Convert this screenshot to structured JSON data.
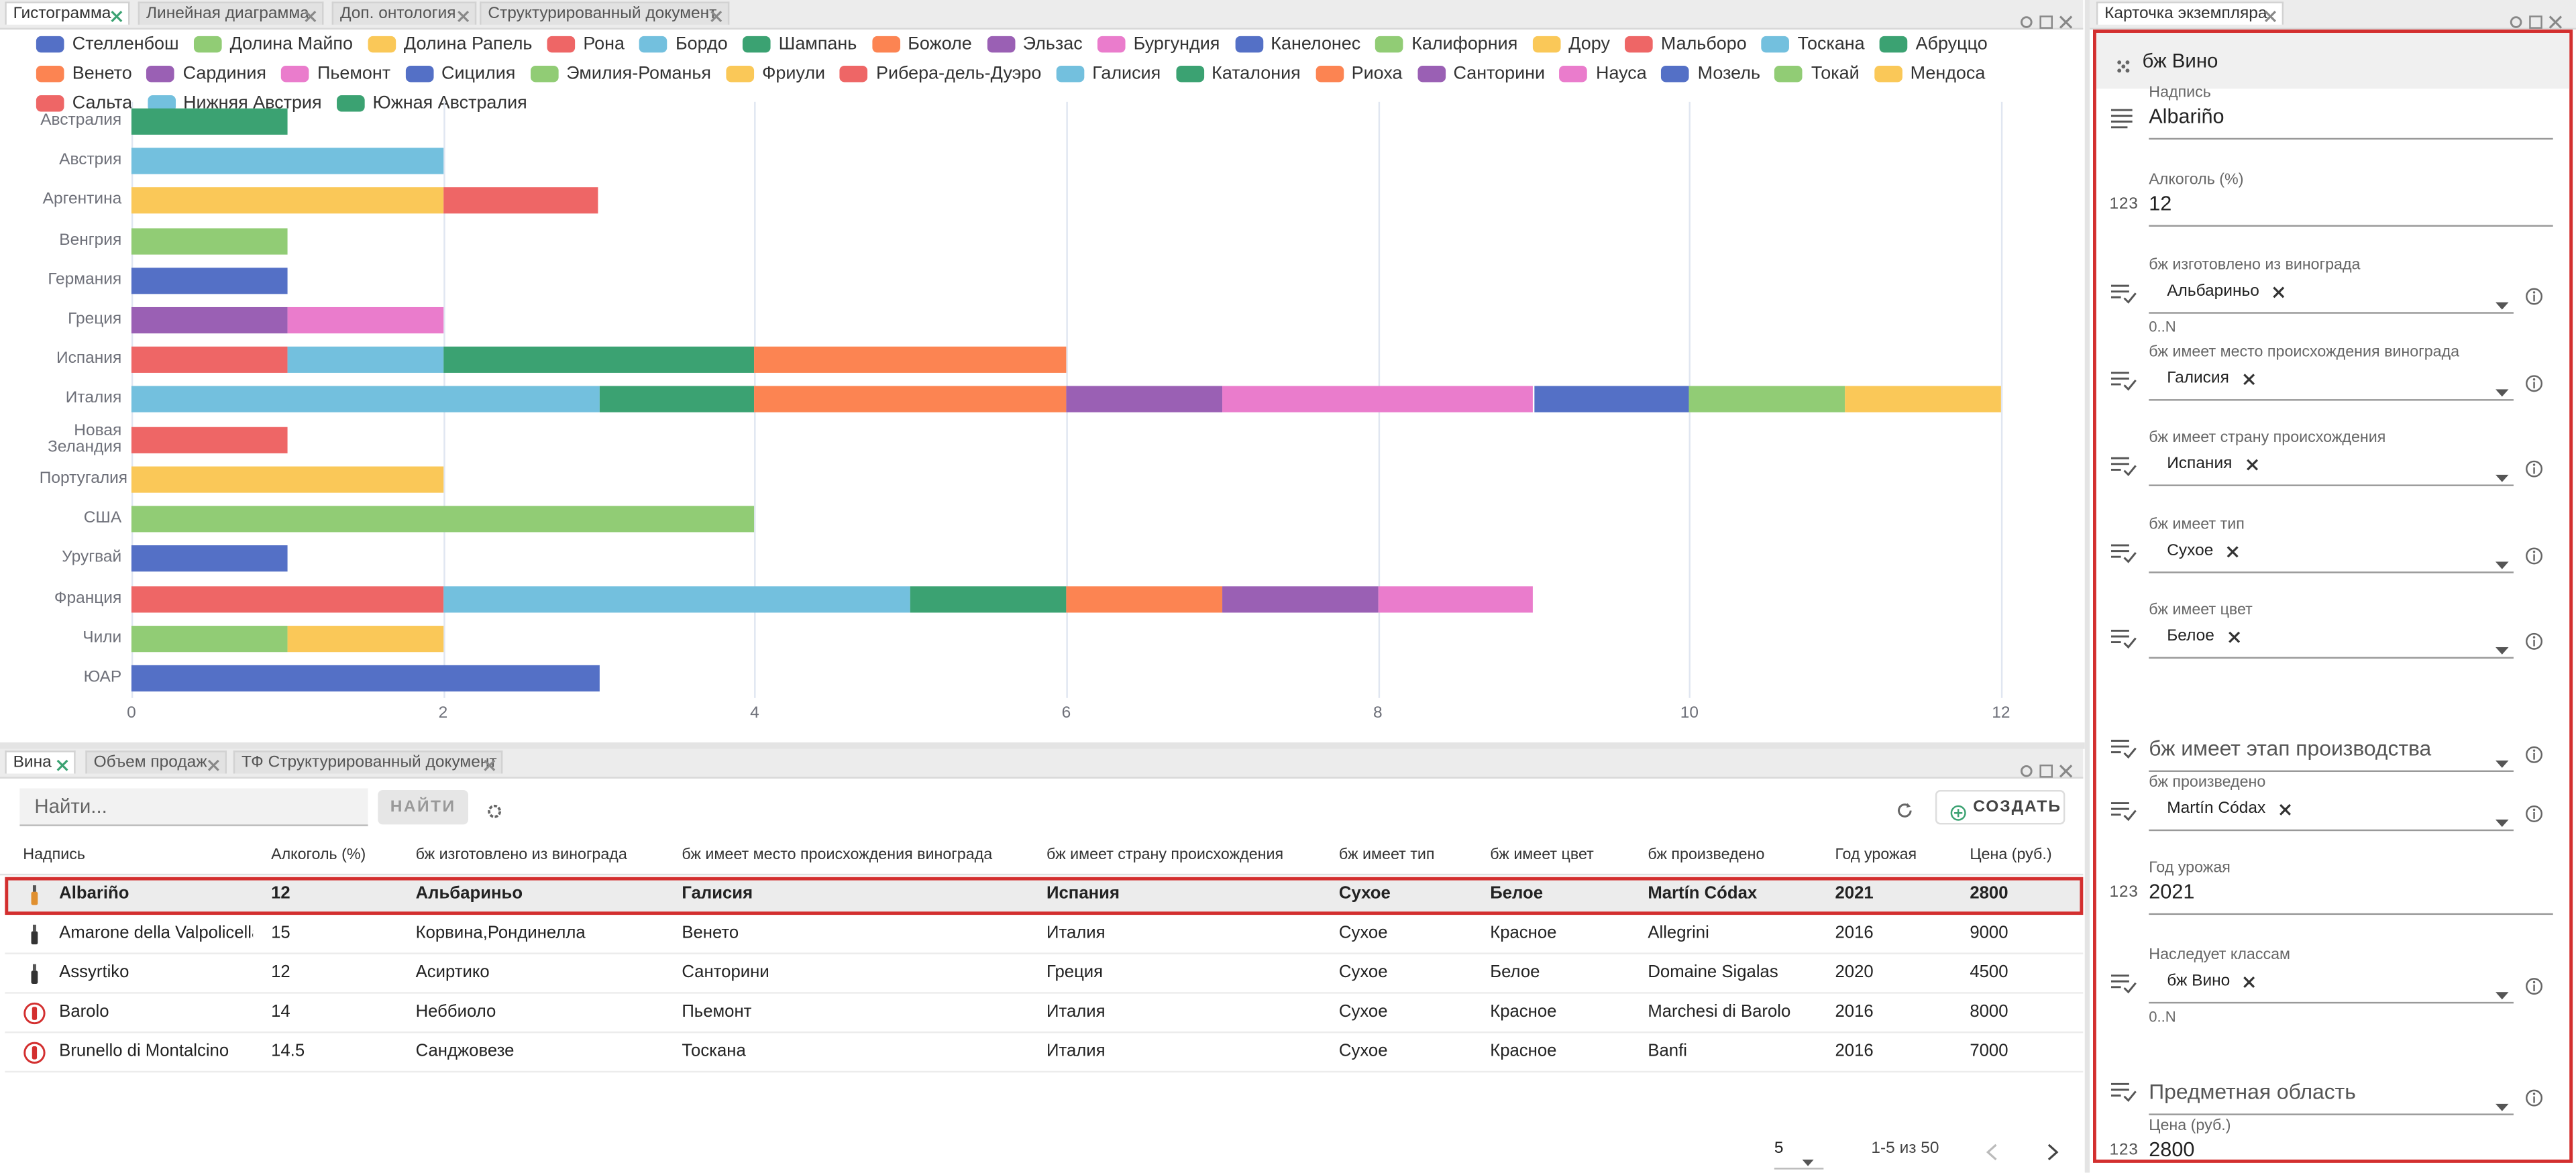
{
  "top_tabs": [
    "Гистограмма",
    "Линейная диаграмма",
    "Доп. онтология",
    "Структурированный документ"
  ],
  "chart_data": {
    "type": "bar",
    "orientation": "horizontal",
    "stacked": true,
    "grid": true,
    "legend": "top",
    "categories": [
      "Австралия",
      "Австрия",
      "Аргентина",
      "Венгрия",
      "Германия",
      "Греция",
      "Испания",
      "Италия",
      "Новая Зеландия",
      "Португалия",
      "США",
      "Уругвай",
      "Франция",
      "Чили",
      "ЮАР"
    ],
    "xlim": [
      0,
      12
    ],
    "xticks": [
      0,
      2,
      4,
      6,
      8,
      10,
      12
    ],
    "series": [
      {
        "name": "Стелленбош",
        "color": "#5470c6",
        "values": [
          null,
          null,
          null,
          null,
          null,
          null,
          null,
          null,
          null,
          null,
          null,
          null,
          null,
          null,
          3
        ]
      },
      {
        "name": "Долина Майпо",
        "color": "#91cc75",
        "values": [
          null,
          null,
          null,
          null,
          null,
          null,
          null,
          null,
          null,
          null,
          null,
          null,
          null,
          1,
          null
        ]
      },
      {
        "name": "Долина Рапель",
        "color": "#fac858",
        "values": [
          null,
          null,
          null,
          null,
          null,
          null,
          null,
          null,
          null,
          null,
          null,
          null,
          null,
          1,
          null
        ]
      },
      {
        "name": "Рона",
        "color": "#ee6666",
        "values": [
          null,
          null,
          null,
          null,
          null,
          null,
          null,
          null,
          null,
          null,
          null,
          null,
          2,
          null,
          null
        ]
      },
      {
        "name": "Бордо",
        "color": "#73c0de",
        "values": [
          null,
          null,
          null,
          null,
          null,
          null,
          null,
          null,
          null,
          null,
          null,
          null,
          3,
          null,
          null
        ]
      },
      {
        "name": "Шампань",
        "color": "#3ba272",
        "values": [
          null,
          null,
          null,
          null,
          null,
          null,
          null,
          null,
          null,
          null,
          null,
          null,
          1,
          null,
          null
        ]
      },
      {
        "name": "Божоле",
        "color": "#fc8452",
        "values": [
          null,
          null,
          null,
          null,
          null,
          null,
          null,
          null,
          null,
          null,
          null,
          null,
          1,
          null,
          null
        ]
      },
      {
        "name": "Эльзас",
        "color": "#9a60b4",
        "values": [
          null,
          null,
          null,
          null,
          null,
          null,
          null,
          null,
          null,
          null,
          null,
          null,
          1,
          null,
          null
        ]
      },
      {
        "name": "Бургундия",
        "color": "#ea7ccc",
        "values": [
          null,
          null,
          null,
          null,
          null,
          null,
          null,
          null,
          null,
          null,
          null,
          null,
          1,
          null,
          null
        ]
      },
      {
        "name": "Канелонес",
        "color": "#5470c6",
        "values": [
          null,
          null,
          null,
          null,
          null,
          null,
          null,
          null,
          null,
          null,
          null,
          1,
          null,
          null,
          null
        ]
      },
      {
        "name": "Калифорния",
        "color": "#91cc75",
        "values": [
          null,
          null,
          null,
          null,
          null,
          null,
          null,
          null,
          null,
          null,
          4,
          null,
          null,
          null,
          null
        ]
      },
      {
        "name": "Дору",
        "color": "#fac858",
        "values": [
          null,
          null,
          null,
          null,
          null,
          null,
          null,
          null,
          null,
          2,
          null,
          null,
          null,
          null,
          null
        ]
      },
      {
        "name": "Мальборо",
        "color": "#ee6666",
        "values": [
          null,
          null,
          null,
          null,
          null,
          null,
          null,
          null,
          1,
          null,
          null,
          null,
          null,
          null,
          null
        ]
      },
      {
        "name": "Тоскана",
        "color": "#73c0de",
        "values": [
          null,
          null,
          null,
          null,
          null,
          null,
          null,
          3,
          null,
          null,
          null,
          null,
          null,
          null,
          null
        ]
      },
      {
        "name": "Абруццо",
        "color": "#3ba272",
        "values": [
          null,
          null,
          null,
          null,
          null,
          null,
          null,
          1,
          null,
          null,
          null,
          null,
          null,
          null,
          null
        ]
      },
      {
        "name": "Венето",
        "color": "#fc8452",
        "values": [
          null,
          null,
          null,
          null,
          null,
          null,
          null,
          2,
          null,
          null,
          null,
          null,
          null,
          null,
          null
        ]
      },
      {
        "name": "Сардиния",
        "color": "#9a60b4",
        "values": [
          null,
          null,
          null,
          null,
          null,
          null,
          null,
          1,
          null,
          null,
          null,
          null,
          null,
          null,
          null
        ]
      },
      {
        "name": "Пьемонт",
        "color": "#ea7ccc",
        "values": [
          null,
          null,
          null,
          null,
          null,
          null,
          null,
          2,
          null,
          null,
          null,
          null,
          null,
          null,
          null
        ]
      },
      {
        "name": "Сицилия",
        "color": "#5470c6",
        "values": [
          null,
          null,
          null,
          null,
          null,
          null,
          null,
          1,
          null,
          null,
          null,
          null,
          null,
          null,
          null
        ]
      },
      {
        "name": "Эмилия-Романья",
        "color": "#91cc75",
        "values": [
          null,
          null,
          null,
          null,
          null,
          null,
          null,
          1,
          null,
          null,
          null,
          null,
          null,
          null,
          null
        ]
      },
      {
        "name": "Фриули",
        "color": "#fac858",
        "values": [
          null,
          null,
          null,
          null,
          null,
          null,
          null,
          1,
          null,
          null,
          null,
          null,
          null,
          null,
          null
        ]
      },
      {
        "name": "Рибера-дель-Дуэро",
        "color": "#ee6666",
        "values": [
          null,
          null,
          null,
          null,
          null,
          null,
          1,
          null,
          null,
          null,
          null,
          null,
          null,
          null,
          null
        ]
      },
      {
        "name": "Галисия",
        "color": "#73c0de",
        "values": [
          null,
          null,
          null,
          null,
          null,
          null,
          1,
          null,
          null,
          null,
          null,
          null,
          null,
          null,
          null
        ]
      },
      {
        "name": "Каталония",
        "color": "#3ba272",
        "values": [
          null,
          null,
          null,
          null,
          null,
          null,
          2,
          null,
          null,
          null,
          null,
          null,
          null,
          null,
          null
        ]
      },
      {
        "name": "Риоха",
        "color": "#fc8452",
        "values": [
          null,
          null,
          null,
          null,
          null,
          null,
          2,
          null,
          null,
          null,
          null,
          null,
          null,
          null,
          null
        ]
      },
      {
        "name": "Санторини",
        "color": "#9a60b4",
        "values": [
          null,
          null,
          null,
          null,
          null,
          1,
          null,
          null,
          null,
          null,
          null,
          null,
          null,
          null,
          null
        ]
      },
      {
        "name": "Науса",
        "color": "#ea7ccc",
        "values": [
          null,
          null,
          null,
          null,
          null,
          1,
          null,
          null,
          null,
          null,
          null,
          null,
          null,
          null,
          null
        ]
      },
      {
        "name": "Мозель",
        "color": "#5470c6",
        "values": [
          null,
          null,
          null,
          null,
          1,
          null,
          null,
          null,
          null,
          null,
          null,
          null,
          null,
          null,
          null
        ]
      },
      {
        "name": "Токай",
        "color": "#91cc75",
        "values": [
          null,
          null,
          null,
          1,
          null,
          null,
          null,
          null,
          null,
          null,
          null,
          null,
          null,
          null,
          null
        ]
      },
      {
        "name": "Мендоса",
        "color": "#fac858",
        "values": [
          null,
          null,
          2,
          null,
          null,
          null,
          null,
          null,
          null,
          null,
          null,
          null,
          null,
          null,
          null
        ]
      },
      {
        "name": "Сальта",
        "color": "#ee6666",
        "values": [
          null,
          null,
          1,
          null,
          null,
          null,
          null,
          null,
          null,
          null,
          null,
          null,
          null,
          null,
          null
        ]
      },
      {
        "name": "Нижняя Австрия",
        "color": "#73c0de",
        "values": [
          null,
          2,
          null,
          null,
          null,
          null,
          null,
          null,
          null,
          null,
          null,
          null,
          null,
          null,
          null
        ]
      },
      {
        "name": "Южная Австралия",
        "color": "#3ba272",
        "values": [
          1,
          null,
          null,
          null,
          null,
          null,
          null,
          null,
          null,
          null,
          null,
          null,
          null,
          null,
          null
        ]
      }
    ]
  },
  "bottom_tabs": [
    "Вина",
    "Объем продаж",
    "ТФ Структурированный документ"
  ],
  "toolbar": {
    "search_placeholder": "Найти...",
    "search_button": "НАЙТИ",
    "create_button": "СОЗДАТЬ"
  },
  "table": {
    "columns": [
      "Надпись",
      "Алкоголь (%)",
      "бж изготовлено из винограда",
      "бж имеет место происхождения винограда",
      "бж имеет страну происхождения",
      "бж имеет тип",
      "бж имеет цвет",
      "бж произведено",
      "Год урожая",
      "Цена (руб.)"
    ],
    "rows": [
      [
        "Albariño",
        "12",
        "Альбариньо",
        "Галисия",
        "Испания",
        "Сухое",
        "Белое",
        "Martín Códax",
        "2021",
        "2800"
      ],
      [
        "Amarone della Valpolicella",
        "15",
        "Корвина,Рондинелла",
        "Венето",
        "Италия",
        "Сухое",
        "Красное",
        "Allegrini",
        "2016",
        "9000"
      ],
      [
        "Assyrtiko",
        "12",
        "Асиртико",
        "Санторини",
        "Греция",
        "Сухое",
        "Белое",
        "Domaine Sigalas",
        "2020",
        "4500"
      ],
      [
        "Barolo",
        "14",
        "Неббиоло",
        "Пьемонт",
        "Италия",
        "Сухое",
        "Красное",
        "Marchesi di Barolo",
        "2016",
        "8000"
      ],
      [
        "Brunello di Montalcino",
        "14.5",
        "Санджовезе",
        "Тоскана",
        "Италия",
        "Сухое",
        "Красное",
        "Banfi",
        "2016",
        "7000"
      ]
    ]
  },
  "pagination": {
    "page_size": "5",
    "range": "1-5 из 50"
  },
  "card": {
    "tab": "Карточка экземпляра",
    "title": "бж Вино",
    "fields": [
      {
        "label": "Надпись",
        "value": "Albariño"
      },
      {
        "label": "Алкоголь (%)",
        "value": "12",
        "icon": "123"
      },
      {
        "label": "бж изготовлено из винограда",
        "chips": [
          "Альбариньо"
        ],
        "note": "0..N"
      },
      {
        "label": "бж имеет место происхождения винограда",
        "chips": [
          "Галисия"
        ]
      },
      {
        "label": "бж имеет страну происхождения",
        "chips": [
          "Испания"
        ]
      },
      {
        "label": "бж имеет тип",
        "chips": [
          "Сухое"
        ]
      },
      {
        "label": "бж имеет цвет",
        "chips": [
          "Белое"
        ]
      },
      {
        "placeholder": "бж имеет этап производства"
      },
      {
        "label": "бж произведено",
        "chips": [
          "Martín Códax"
        ]
      },
      {
        "label": "Год урожая",
        "value": "2021",
        "icon": "123"
      },
      {
        "label": "Наследует классам",
        "chips": [
          "бж Вино"
        ],
        "note": "0..N"
      },
      {
        "placeholder": "Предметная область"
      },
      {
        "label": "Цена (руб.)",
        "value": "2800",
        "icon": "123"
      }
    ]
  }
}
